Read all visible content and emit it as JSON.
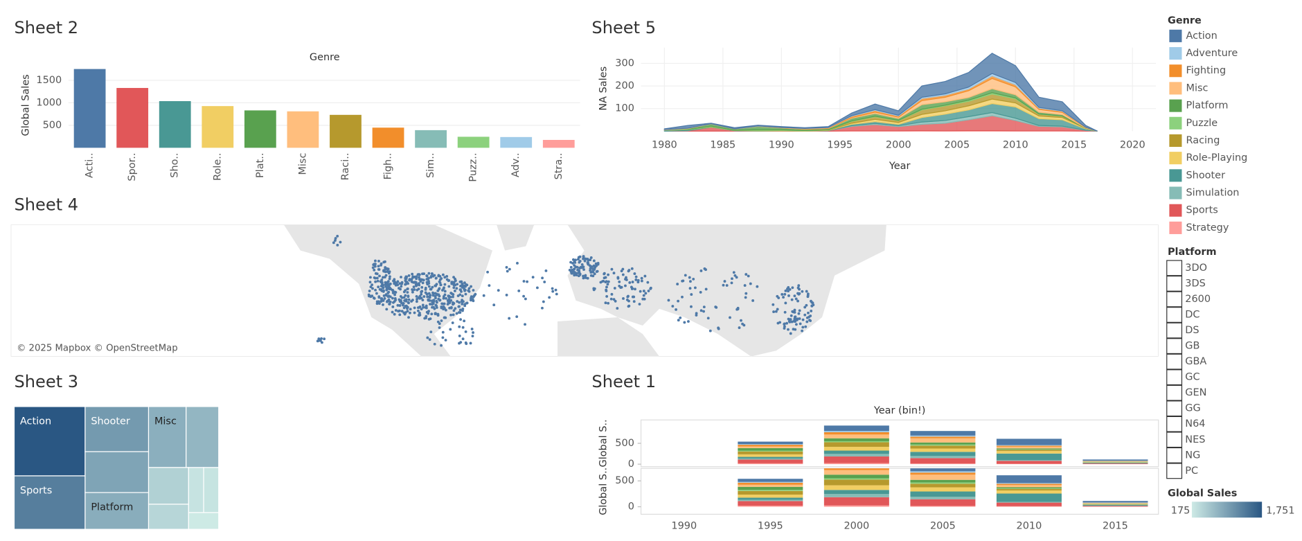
{
  "sheet2": {
    "type": "bar",
    "title": "Sheet 2",
    "header": "Genre",
    "y_label": "Global Sales",
    "categories": [
      "Acti..",
      "Spor..",
      "Sho..",
      "Role..",
      "Plat..",
      "Misc",
      "Raci..",
      "Figh..",
      "Sim..",
      "Puzz..",
      "Adv..",
      "Stra.."
    ],
    "values": [
      1751,
      1330,
      1037,
      927,
      831,
      810,
      732,
      448,
      392,
      245,
      239,
      175
    ],
    "colors": [
      "#4e79a7",
      "#e15759",
      "#499894",
      "#f1ce63",
      "#59a14f",
      "#ffbe7d",
      "#b6992d",
      "#f28e2b",
      "#86bcb6",
      "#8cd17d",
      "#a0cbe8",
      "#ff9d9a"
    ],
    "ylim": [
      0,
      1800
    ],
    "yticks": [
      500,
      1000,
      1500
    ],
    "grid": true
  },
  "sheet5": {
    "type": "area",
    "title": "Sheet 5",
    "x_label": "Year",
    "y_label": "NA Sales",
    "legend_title": "Genre",
    "x": [
      1980,
      1982,
      1984,
      1986,
      1988,
      1990,
      1992,
      1994,
      1996,
      1998,
      2000,
      2002,
      2004,
      2006,
      2008,
      2010,
      2012,
      2014,
      2016,
      2017
    ],
    "series": [
      {
        "name": "Action",
        "color": "#4e79a7",
        "values": [
          3,
          12,
          2,
          5,
          3,
          4,
          3,
          4,
          12,
          25,
          20,
          50,
          55,
          65,
          90,
          75,
          45,
          40,
          8,
          0
        ]
      },
      {
        "name": "Adventure",
        "color": "#a0cbe8",
        "values": [
          0,
          0,
          0,
          0,
          1,
          0,
          1,
          1,
          2,
          3,
          3,
          5,
          6,
          8,
          10,
          9,
          3,
          2,
          0,
          0
        ]
      },
      {
        "name": "Fighting",
        "color": "#f28e2b",
        "values": [
          0,
          0,
          0,
          0,
          0,
          1,
          2,
          3,
          6,
          8,
          5,
          10,
          9,
          8,
          12,
          10,
          6,
          5,
          1,
          0
        ]
      },
      {
        "name": "Misc",
        "color": "#ffbe7d",
        "values": [
          2,
          2,
          1,
          1,
          1,
          1,
          1,
          1,
          3,
          6,
          6,
          18,
          20,
          30,
          45,
          35,
          12,
          10,
          2,
          0
        ]
      },
      {
        "name": "Platform",
        "color": "#59a14f",
        "values": [
          0,
          3,
          10,
          5,
          15,
          8,
          5,
          5,
          12,
          12,
          8,
          20,
          15,
          12,
          18,
          14,
          8,
          6,
          1,
          0
        ]
      },
      {
        "name": "Puzzle",
        "color": "#8cd17d",
        "values": [
          1,
          2,
          3,
          1,
          3,
          3,
          1,
          1,
          2,
          2,
          2,
          3,
          3,
          5,
          6,
          4,
          1,
          1,
          0,
          0
        ]
      },
      {
        "name": "Racing",
        "color": "#b6992d",
        "values": [
          0,
          0,
          1,
          0,
          1,
          1,
          1,
          1,
          8,
          12,
          8,
          20,
          22,
          20,
          22,
          18,
          8,
          6,
          1,
          0
        ]
      },
      {
        "name": "Role-Playing",
        "color": "#f1ce63",
        "values": [
          0,
          0,
          0,
          0,
          1,
          1,
          1,
          1,
          5,
          10,
          8,
          14,
          15,
          18,
          20,
          18,
          12,
          10,
          2,
          0
        ]
      },
      {
        "name": "Shooter",
        "color": "#499894",
        "values": [
          4,
          4,
          1,
          1,
          1,
          0,
          0,
          1,
          6,
          8,
          6,
          20,
          28,
          30,
          40,
          50,
          30,
          28,
          6,
          0
        ]
      },
      {
        "name": "Simulation",
        "color": "#86bcb6",
        "values": [
          0,
          0,
          0,
          0,
          0,
          0,
          0,
          0,
          3,
          5,
          4,
          10,
          12,
          14,
          14,
          10,
          4,
          3,
          1,
          0
        ]
      },
      {
        "name": "Sports",
        "color": "#e15759",
        "values": [
          0,
          2,
          17,
          2,
          0,
          1,
          0,
          2,
          20,
          28,
          19,
          28,
          34,
          48,
          66,
          46,
          20,
          18,
          3,
          0
        ]
      },
      {
        "name": "Strategy",
        "color": "#ff9d9a",
        "values": [
          0,
          0,
          0,
          0,
          0,
          0,
          0,
          0,
          1,
          1,
          1,
          2,
          1,
          2,
          2,
          1,
          1,
          1,
          0,
          0
        ]
      }
    ],
    "xlim": [
      1978,
      2022
    ],
    "xticks": [
      1980,
      1985,
      1990,
      1995,
      2000,
      2005,
      2010,
      2015,
      2020
    ],
    "ylim": [
      0,
      370
    ],
    "yticks": [
      100,
      200,
      300
    ],
    "grid": true
  },
  "sheet4": {
    "type": "map",
    "title": "Sheet 4",
    "attribution": "© 2025 Mapbox © OpenStreetMap",
    "color": "#4e79a7"
  },
  "sheet3": {
    "type": "treemap",
    "title": "Sheet 3",
    "categories": [
      "Action",
      "Sports",
      "Shooter",
      null,
      "Platform",
      "Misc",
      null,
      null,
      null,
      null,
      null,
      null
    ],
    "values": [
      1751,
      1330,
      1037,
      927,
      831,
      810,
      732,
      448,
      392,
      245,
      239,
      175
    ],
    "color_scale": {
      "title": "Global Sales",
      "min": 175,
      "max": {
        "value": 1751,
        "label": "1,751"
      },
      "colors": [
        "#cdeae5",
        "#2a5783"
      ]
    }
  },
  "sheet1": {
    "type": "stacked_bar",
    "title": "Sheet 1",
    "header": "Year (bin!)",
    "categories": [
      1990,
      1995,
      2000,
      2005,
      2010,
      2015
    ],
    "panes": [
      {
        "y_label": "Global S..",
        "ylim": [
          -60,
          1060
        ],
        "yticks": [
          0,
          500
        ],
        "series": [
          {
            "color": "#4e79a7",
            "values": [
              0,
              60,
              130,
              110,
              150,
              30
            ]
          },
          {
            "color": "#a0cbe8",
            "values": [
              0,
              15,
              30,
              25,
              15,
              5
            ]
          },
          {
            "color": "#f28e2b",
            "values": [
              0,
              40,
              55,
              40,
              25,
              5
            ]
          },
          {
            "color": "#ffbe7d",
            "values": [
              0,
              40,
              90,
              100,
              40,
              8
            ]
          },
          {
            "color": "#59a14f",
            "values": [
              0,
              60,
              70,
              50,
              25,
              5
            ]
          },
          {
            "color": "#8cd17d",
            "values": [
              0,
              20,
              25,
              25,
              8,
              2
            ]
          },
          {
            "color": "#b6992d",
            "values": [
              0,
              70,
              110,
              70,
              30,
              5
            ]
          },
          {
            "color": "#f1ce63",
            "values": [
              0,
              60,
              90,
              80,
              60,
              12
            ]
          },
          {
            "color": "#499894",
            "values": [
              0,
              40,
              80,
              100,
              160,
              20
            ]
          },
          {
            "color": "#86bcb6",
            "values": [
              0,
              25,
              60,
              50,
              15,
              3
            ]
          },
          {
            "color": "#e15759",
            "values": [
              0,
              90,
              160,
              130,
              70,
              15
            ]
          },
          {
            "color": "#ff9d9a",
            "values": [
              0,
              20,
              25,
              15,
              10,
              2
            ]
          }
        ]
      },
      {
        "y_label": "Global S..",
        "ylim": [
          -145,
          742
        ],
        "yticks": [
          0,
          500
        ],
        "series": [
          {
            "color": "#4e79a7",
            "values": [
              0,
              60,
              130,
              110,
              150,
              30
            ]
          },
          {
            "color": "#a0cbe8",
            "values": [
              0,
              15,
              30,
              25,
              15,
              5
            ]
          },
          {
            "color": "#f28e2b",
            "values": [
              0,
              40,
              55,
              40,
              25,
              5
            ]
          },
          {
            "color": "#ffbe7d",
            "values": [
              0,
              40,
              90,
              100,
              40,
              8
            ]
          },
          {
            "color": "#59a14f",
            "values": [
              0,
              60,
              70,
              50,
              25,
              5
            ]
          },
          {
            "color": "#8cd17d",
            "values": [
              0,
              20,
              25,
              25,
              8,
              2
            ]
          },
          {
            "color": "#b6992d",
            "values": [
              0,
              70,
              110,
              70,
              30,
              5
            ]
          },
          {
            "color": "#f1ce63",
            "values": [
              0,
              60,
              90,
              80,
              60,
              12
            ]
          },
          {
            "color": "#499894",
            "values": [
              0,
              40,
              80,
              100,
              160,
              20
            ]
          },
          {
            "color": "#86bcb6",
            "values": [
              0,
              25,
              60,
              50,
              15,
              3
            ]
          },
          {
            "color": "#e15759",
            "values": [
              0,
              90,
              160,
              130,
              70,
              15
            ]
          },
          {
            "color": "#ff9d9a",
            "values": [
              0,
              20,
              25,
              15,
              10,
              2
            ]
          }
        ]
      }
    ]
  },
  "platform_filter": {
    "title": "Platform",
    "items": [
      "3DO",
      "3DS",
      "2600",
      "DC",
      "DS",
      "GB",
      "GBA",
      "GC",
      "GEN",
      "GG",
      "N64",
      "NES",
      "NG",
      "PC"
    ]
  }
}
